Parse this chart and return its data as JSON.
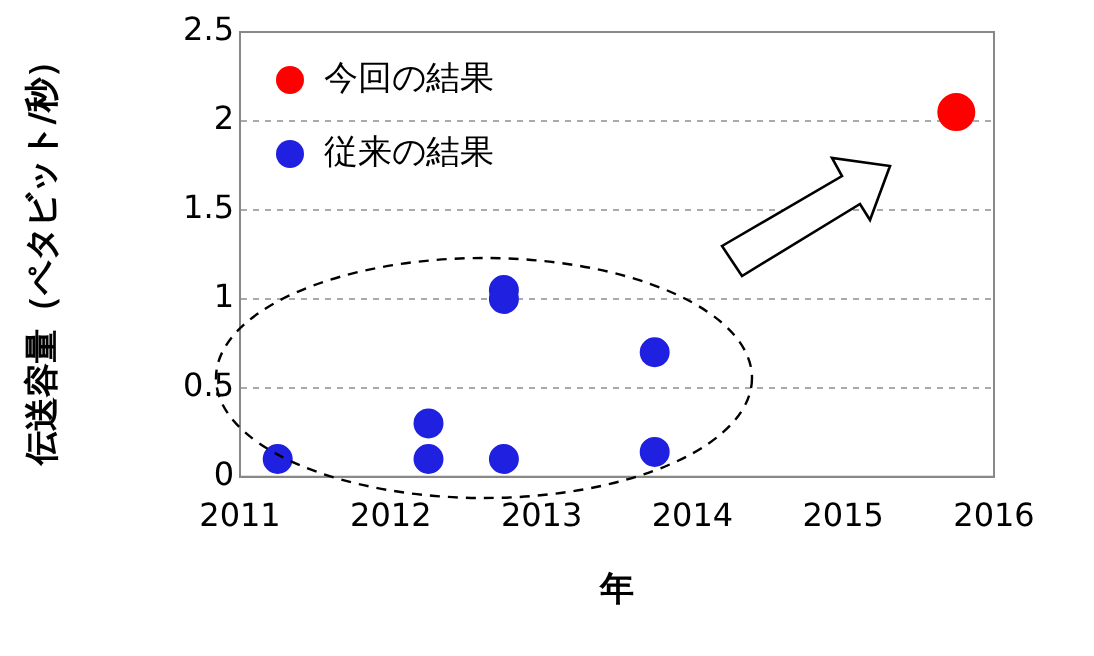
{
  "chart_data": {
    "type": "scatter",
    "xlabel": "年",
    "ylabel": "伝送容量（ペタビット/秒）",
    "xlim": [
      2011,
      2016
    ],
    "xticks": [
      2011,
      2012,
      2013,
      2014,
      2015,
      2016
    ],
    "ylim": [
      0,
      2.5
    ],
    "yticks": [
      0,
      0.5,
      1,
      1.5,
      2,
      2.5
    ],
    "grid": "y",
    "legend": "top left",
    "marker": "circle",
    "series": [
      {
        "name": "今回の結果",
        "color": "#ff0000",
        "x": [
          2015.75
        ],
        "values": [
          2.05
        ]
      },
      {
        "name": "従来の結果",
        "color": "#2020e0",
        "x": [
          2011.25,
          2012.25,
          2012.25,
          2012.75,
          2012.75,
          2012.75,
          2013.75,
          2013.75
        ],
        "values": [
          0.1,
          0.3,
          0.1,
          1.05,
          1.0,
          0.1,
          0.7,
          0.14
        ]
      }
    ]
  }
}
